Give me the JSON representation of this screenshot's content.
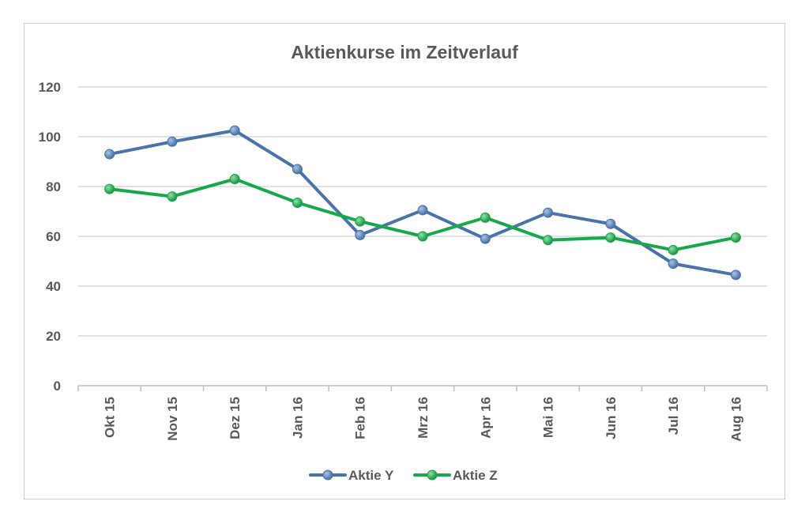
{
  "chart_data": {
    "type": "line",
    "title": "Aktienkurse im Zeitverlauf",
    "xlabel": "",
    "ylabel": "",
    "categories": [
      "Okt 15",
      "Nov 15",
      "Dez 15",
      "Jan 16",
      "Feb 16",
      "Mrz 16",
      "Apr 16",
      "Mai 16",
      "Jun 16",
      "Jul 16",
      "Aug 16"
    ],
    "ylim": [
      0,
      120
    ],
    "yticks": [
      "0",
      "20",
      "40",
      "60",
      "80",
      "100",
      "120"
    ],
    "grid": true,
    "legend_position": "bottom",
    "series": [
      {
        "name": "Aktie Y",
        "color": "#4a74a8",
        "values": [
          93,
          98,
          102.5,
          87,
          60.5,
          70.5,
          59,
          69.5,
          65,
          49,
          44.5
        ]
      },
      {
        "name": "Aktie Z",
        "color": "#16a84a",
        "values": [
          79,
          76,
          83,
          73.5,
          66,
          60,
          67.5,
          58.5,
          59.5,
          54.5,
          59.5
        ]
      }
    ]
  }
}
